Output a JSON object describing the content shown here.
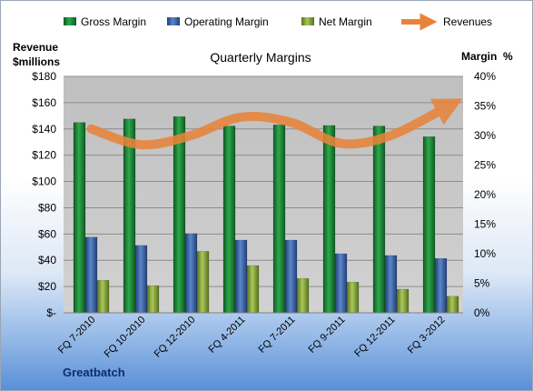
{
  "chart_data": {
    "type": "bar",
    "title": "Quarterly Margins",
    "company": "Greatbatch",
    "left_axis_label": [
      "Revenue",
      "$millions"
    ],
    "right_axis_label": "Margin  %",
    "categories": [
      "FQ 7-2010",
      "FQ 10-2010",
      "FQ 12-2010",
      "FQ 4-2011",
      "FQ 7-2011",
      "FQ 9-2011",
      "FQ 12-2011",
      "FQ 3-2012"
    ],
    "left_axis": {
      "min": 0,
      "max": 180,
      "step": 20,
      "tick_labels": [
        "$-",
        "$20",
        "$40",
        "$60",
        "$80",
        "$100",
        "$120",
        "$140",
        "$160",
        "$180"
      ]
    },
    "right_axis": {
      "min": 0,
      "max": 40,
      "step": 5,
      "tick_labels": [
        "0%",
        "5%",
        "10%",
        "15%",
        "20%",
        "25%",
        "30%",
        "35%",
        "40%"
      ]
    },
    "legend_position": "top",
    "series": [
      {
        "name": "Gross Margin",
        "axis": "right",
        "color": "#1e8a3c",
        "values": [
          32.2,
          32.8,
          33.2,
          31.6,
          31.8,
          31.7,
          31.6,
          29.8
        ]
      },
      {
        "name": "Operating Margin",
        "axis": "right",
        "color": "#3a6db0",
        "values": [
          12.8,
          11.4,
          13.4,
          12.3,
          12.3,
          10.0,
          9.7,
          9.2
        ]
      },
      {
        "name": "Net Margin",
        "axis": "right",
        "color": "#8fae3c",
        "values": [
          5.5,
          4.6,
          10.4,
          8.0,
          5.8,
          5.2,
          4.0,
          2.8
        ]
      },
      {
        "name": "Revenues",
        "axis": "left",
        "color": "#e8843a",
        "type": "line",
        "values": [
          140,
          128,
          135,
          149,
          145,
          129,
          135,
          158
        ]
      }
    ]
  }
}
